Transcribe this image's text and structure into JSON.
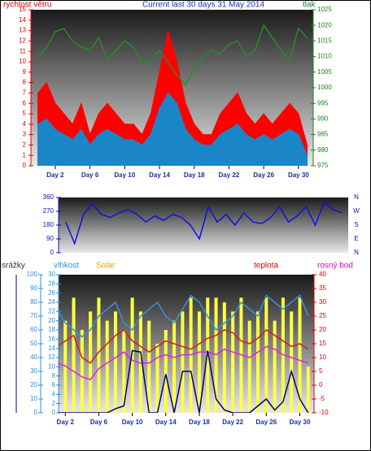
{
  "chart_data": [
    {
      "type": "line",
      "title": "Current last 30 days 31 May 2014",
      "y_label": "rychlost větru",
      "y2_label": "tlak",
      "x": [
        0,
        1,
        2,
        3,
        4,
        5,
        6,
        7,
        8,
        9,
        10,
        11,
        12,
        13,
        14,
        15,
        16,
        17,
        18,
        19,
        20,
        21,
        22,
        23,
        24,
        25,
        26,
        27,
        28,
        29,
        30,
        31
      ],
      "xlim": [
        -0.8,
        31.7
      ],
      "xticks": [
        {
          "value": 2,
          "label": "Day 2"
        },
        {
          "value": 6,
          "label": "Day 6"
        },
        {
          "value": 10,
          "label": "Day 10"
        },
        {
          "value": 14,
          "label": "Day 14"
        },
        {
          "value": 18,
          "label": "Day 18"
        },
        {
          "value": 22,
          "label": "Day 22"
        },
        {
          "value": 26,
          "label": "Day 26"
        },
        {
          "value": 30,
          "label": "Day 30"
        }
      ],
      "ylim": [
        0,
        15
      ],
      "yticks": [
        0,
        1,
        2,
        3,
        4,
        5,
        6,
        7,
        8,
        9,
        10,
        11,
        12,
        13,
        14,
        15
      ],
      "y2lim": [
        975,
        1025
      ],
      "y2ticks": [
        975,
        980,
        985,
        990,
        995,
        1000,
        1005,
        1010,
        1015,
        1020,
        1025
      ],
      "series": [
        {
          "color": "#ff0000",
          "fill": true,
          "axis": "y",
          "values": [
            7,
            8,
            6,
            5,
            4,
            6,
            3,
            5,
            6,
            5,
            4,
            4,
            3,
            5,
            9,
            13,
            10,
            6,
            4,
            3,
            3,
            5,
            6,
            7,
            5,
            4,
            5,
            4,
            5,
            6,
            5,
            2
          ]
        },
        {
          "color": "#1a86c8",
          "fill": true,
          "axis": "y",
          "values": [
            4,
            4.5,
            3.5,
            3,
            2.5,
            3.5,
            2,
            3,
            3.5,
            3,
            2.5,
            2.5,
            2,
            3,
            5.5,
            7,
            6,
            3.5,
            2.5,
            2,
            2,
            3,
            3.5,
            4,
            3,
            2.5,
            3,
            2.5,
            3,
            3.5,
            3,
            1
          ]
        },
        {
          "color": "#2a8a2a",
          "fill": false,
          "axis": "y2",
          "values": [
            1010,
            1013,
            1018,
            1019,
            1015,
            1013,
            1012,
            1016,
            1009,
            1012,
            1015,
            1013,
            1008,
            1009,
            1012,
            1008,
            1004,
            1001,
            1006,
            1010,
            1012,
            1011,
            1014,
            1015,
            1010,
            1012,
            1020,
            1016,
            1012,
            1009,
            1019,
            1016
          ]
        }
      ]
    },
    {
      "type": "line",
      "x": [
        0,
        1,
        2,
        3,
        4,
        5,
        6,
        7,
        8,
        9,
        10,
        11,
        12,
        13,
        14,
        15,
        16,
        17,
        18,
        19,
        20,
        21,
        22,
        23,
        24,
        25,
        26,
        27,
        28,
        29,
        30,
        31
      ],
      "xlim": [
        -0.8,
        31.7
      ],
      "ylim": [
        0,
        360
      ],
      "yticks": [
        0,
        90,
        180,
        270,
        360
      ],
      "y2lim": [
        0,
        360
      ],
      "y2ticks": [
        {
          "value": 360,
          "label": "N"
        },
        {
          "value": 270,
          "label": "W"
        },
        {
          "value": 180,
          "label": "S"
        },
        {
          "value": 90,
          "label": "E"
        },
        {
          "value": 0,
          "label": "N"
        }
      ],
      "series": [
        {
          "color": "#1010e0",
          "fill": false,
          "axis": "y",
          "values": [
            200,
            60,
            250,
            320,
            250,
            230,
            260,
            280,
            250,
            200,
            240,
            210,
            250,
            230,
            180,
            90,
            300,
            200,
            250,
            180,
            260,
            200,
            190,
            230,
            300,
            200,
            240,
            300,
            180,
            330,
            280,
            260
          ]
        }
      ]
    },
    {
      "type": "line",
      "x": [
        1,
        2,
        3,
        4,
        5,
        6,
        7,
        8,
        9,
        10,
        11,
        12,
        13,
        14,
        15,
        16,
        17,
        18,
        19,
        20,
        21,
        22,
        23,
        24,
        25,
        26,
        27,
        28,
        29,
        30,
        31
      ],
      "xlim": [
        1.2,
        31.7
      ],
      "xticks": [
        {
          "value": 2,
          "label": "Day 2"
        },
        {
          "value": 6,
          "label": "Day 6"
        },
        {
          "value": 10,
          "label": "Day 10"
        },
        {
          "value": 14,
          "label": "Day 14"
        },
        {
          "value": 18,
          "label": "Day 18"
        },
        {
          "value": 22,
          "label": "Day 22"
        },
        {
          "value": 26,
          "label": "Day 26"
        },
        {
          "value": 30,
          "label": "Day 30"
        }
      ],
      "ylim": [
        0,
        100
      ],
      "yticks": [
        0,
        10,
        20,
        30,
        40,
        50,
        60,
        70,
        80,
        90,
        100
      ],
      "y2lim": [
        -10,
        40
      ],
      "y2ticks": [
        -10,
        -5,
        0,
        5,
        10,
        15,
        20,
        25,
        30,
        35,
        40
      ],
      "y3lim": [
        0,
        10
      ],
      "y4lim": [
        0,
        30
      ],
      "y4ticks": [
        0,
        2,
        4,
        6,
        8,
        10,
        12,
        14,
        16,
        18,
        20,
        22,
        24,
        26,
        28,
        30
      ],
      "series": [
        {
          "name": "Solar",
          "color": "#ffff40",
          "bars": true,
          "axis": "y4",
          "values": [
            22,
            20,
            25,
            18,
            22,
            25,
            20,
            22,
            18,
            25,
            22,
            20,
            15,
            18,
            20,
            22,
            25,
            22,
            25,
            25,
            24,
            22,
            25,
            20,
            22,
            25,
            20,
            25,
            22,
            25,
            10
          ]
        },
        {
          "name": "vlhkost",
          "color": "#3a8fe0",
          "axis": "y",
          "values": [
            75,
            65,
            60,
            55,
            60,
            70,
            75,
            80,
            65,
            60,
            70,
            75,
            80,
            70,
            65,
            75,
            85,
            80,
            70,
            60,
            65,
            70,
            80,
            75,
            70,
            85,
            80,
            75,
            80,
            85,
            70
          ]
        },
        {
          "name": "teplota",
          "color": "#cc2020",
          "axis": "y2",
          "values": [
            14,
            16,
            18,
            10,
            8,
            12,
            15,
            18,
            20,
            16,
            14,
            12,
            14,
            16,
            15,
            14,
            13,
            15,
            17,
            18,
            20,
            19,
            16,
            15,
            17,
            20,
            18,
            16,
            14,
            15,
            13
          ]
        },
        {
          "name": "rosný bod",
          "color": "#e020e0",
          "axis": "y2",
          "values": [
            8,
            7,
            5,
            3,
            2,
            6,
            8,
            10,
            12,
            9,
            8,
            8,
            10,
            11,
            10,
            11,
            11,
            12,
            12,
            11,
            13,
            12,
            11,
            10,
            12,
            14,
            13,
            11,
            10,
            9,
            8
          ]
        },
        {
          "name": "srážky",
          "color": "#000080",
          "axis": "y3",
          "values": [
            0,
            0,
            0,
            0,
            0,
            0,
            0,
            0.3,
            0.5,
            4.5,
            4.4,
            0,
            0,
            2.8,
            0,
            3,
            3,
            0,
            4.5,
            1,
            0.2,
            0,
            0,
            0,
            0.5,
            1,
            0.2,
            0.8,
            3,
            1,
            0
          ]
        }
      ]
    }
  ]
}
